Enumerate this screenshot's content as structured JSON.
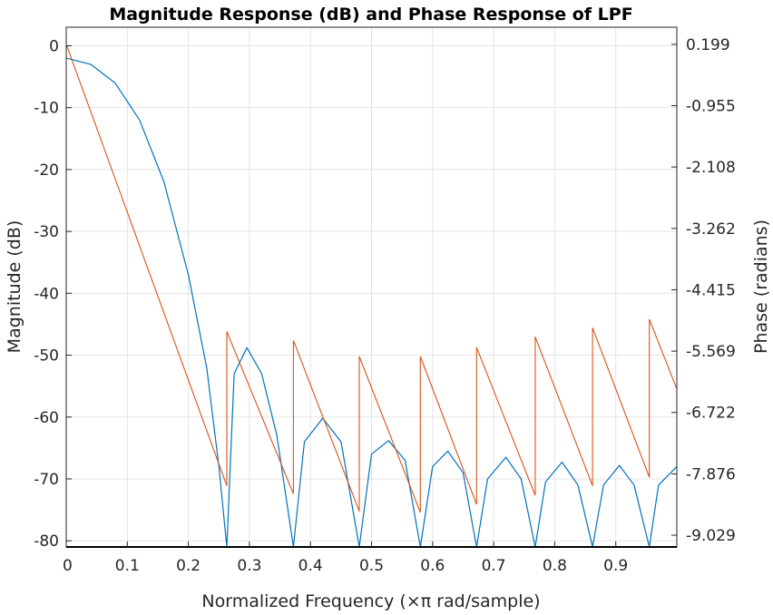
{
  "chart_data": {
    "type": "line",
    "title": "Magnitude Response (dB) and Phase Response of LPF",
    "xlabel": "Normalized Frequency (×π rad/sample)",
    "ylabel_left": "Magnitude (dB)",
    "ylabel_right": "Phase (radians)",
    "xlim": [
      0,
      1
    ],
    "ylim_left": [
      -81,
      3
    ],
    "ylim_right": [
      -9.25,
      0.52
    ],
    "x_ticks": [
      "0",
      "0.1",
      "0.2",
      "0.3",
      "0.4",
      "0.5",
      "0.6",
      "0.7",
      "0.8",
      "0.9"
    ],
    "x_tick_values": [
      0,
      0.1,
      0.2,
      0.3,
      0.4,
      0.5,
      0.6,
      0.7,
      0.8,
      0.9
    ],
    "y_left_ticks": [
      "0",
      "-10",
      "-20",
      "-30",
      "-40",
      "-50",
      "-60",
      "-70",
      "-80"
    ],
    "y_left_tick_values": [
      0,
      -10,
      -20,
      -30,
      -40,
      -50,
      -60,
      -70,
      -80
    ],
    "y_right_ticks": [
      "0.199",
      "-0.955",
      "-2.108",
      "-3.262",
      "-4.415",
      "-5.569",
      "-6.722",
      "-7.876",
      "-9.029"
    ],
    "y_right_tick_values": [
      0.199,
      -0.955,
      -2.108,
      -3.262,
      -4.415,
      -5.569,
      -6.722,
      -7.876,
      -9.029
    ],
    "grid": true,
    "colors": {
      "magnitude": "#0072BD",
      "phase": "#D95319",
      "grid": "#e3e3e3",
      "axis": "#262626"
    },
    "series": [
      {
        "axis": "left",
        "nulls": [
          0.263,
          0.372,
          0.48,
          0.58,
          0.672,
          0.768,
          0.862,
          0.955
        ],
        "x": [
          0,
          0.04,
          0.08,
          0.12,
          0.16,
          0.2,
          0.23,
          0.25,
          0.263,
          0.275,
          0.296,
          0.32,
          0.345,
          0.372,
          0.39,
          0.42,
          0.45,
          0.48,
          0.5,
          0.528,
          0.555,
          0.58,
          0.6,
          0.625,
          0.65,
          0.672,
          0.69,
          0.72,
          0.745,
          0.768,
          0.785,
          0.812,
          0.838,
          0.862,
          0.88,
          0.906,
          0.93,
          0.955,
          0.97,
          1.0
        ],
        "values": [
          -2,
          -3,
          -6,
          -12,
          -22,
          -37,
          -52,
          -68,
          -81,
          -53,
          -48.8,
          -53,
          -63,
          -81,
          -64,
          -60.2,
          -64,
          -81,
          -66,
          -63.8,
          -67,
          -81,
          -68,
          -65.5,
          -69,
          -81,
          -70,
          -66.5,
          -70,
          -81,
          -70.5,
          -67.3,
          -71,
          -81,
          -71,
          -67.8,
          -71,
          -81,
          -71,
          -68
        ]
      },
      {
        "axis": "right",
        "jumps": [
          0.263,
          0.372,
          0.48,
          0.58,
          0.672,
          0.768,
          0.862,
          0.955
        ],
        "x": [
          0,
          0.263,
          0.263,
          0.372,
          0.372,
          0.48,
          0.48,
          0.58,
          0.58,
          0.672,
          0.672,
          0.768,
          0.768,
          0.862,
          0.862,
          0.955,
          0.955,
          1.0
        ],
        "values": [
          0.199,
          -8.1,
          -5.2,
          -8.25,
          -5.37,
          -8.58,
          -5.67,
          -8.6,
          -5.67,
          -8.45,
          -5.5,
          -8.28,
          -5.3,
          -8.1,
          -5.13,
          -7.94,
          -4.97,
          -6.28
        ]
      }
    ]
  }
}
